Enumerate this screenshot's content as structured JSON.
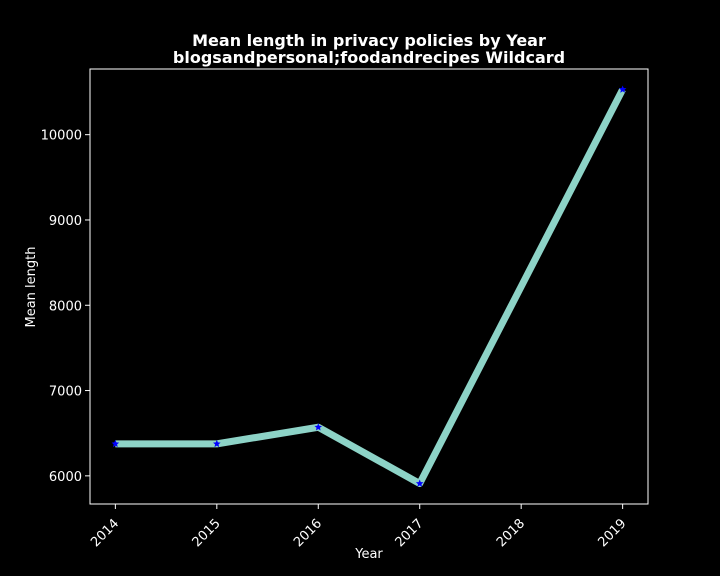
{
  "chart_data": {
    "type": "line",
    "title": "Mean length in privacy policies by Year",
    "subtitle": "blogsandpersonal;foodandrecipes Wildcard",
    "xlabel": "Year",
    "ylabel": "Mean length",
    "x": [
      2014,
      2015,
      2016,
      2017,
      2019
    ],
    "x_ticks": [
      "2014",
      "2015",
      "2016",
      "2017",
      "2018",
      "2019"
    ],
    "y": [
      6375,
      6375,
      6570,
      5910,
      10530
    ],
    "y_ticks": [
      6000,
      7000,
      8000,
      9000,
      10000
    ],
    "xlim": [
      2013.75,
      2019.25
    ],
    "ylim": [
      5670,
      10770
    ],
    "grid": false,
    "legend": "none",
    "line_color": "#8dd3c7",
    "marker": "star",
    "marker_color": "#0000ff",
    "background": "#000000",
    "foreground": "#ffffff"
  }
}
